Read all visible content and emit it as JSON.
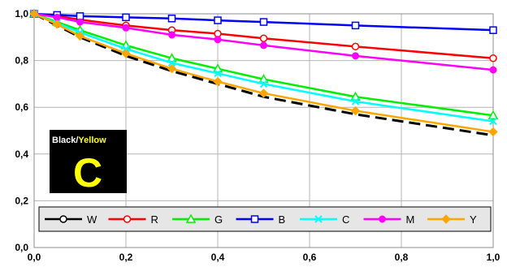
{
  "chart_data": {
    "type": "line",
    "title": "",
    "xlabel": "",
    "ylabel": "",
    "xlim": [
      0,
      1
    ],
    "ylim": [
      0,
      1
    ],
    "x_ticks": [
      "0,0",
      "0,2",
      "0,4",
      "0,6",
      "0,8",
      "1,0"
    ],
    "y_ticks": [
      "0,0",
      "0,2",
      "0,4",
      "0,6",
      "0,8",
      "1,0"
    ],
    "grid": true,
    "legend_position": "bottom",
    "series": [
      {
        "name": "W",
        "color": "#000000",
        "dash": true,
        "marker": "circle-open",
        "x": [
          0,
          0.05,
          0.1,
          0.2,
          0.3,
          0.4,
          0.5,
          0.7,
          1.0
        ],
        "y": [
          1.0,
          0.95,
          0.9,
          0.82,
          0.755,
          0.7,
          0.645,
          0.57,
          0.48
        ]
      },
      {
        "name": "R",
        "color": "#ff0000",
        "dash": false,
        "marker": "circle-open",
        "x": [
          0,
          0.05,
          0.1,
          0.2,
          0.3,
          0.4,
          0.5,
          0.7,
          1.0
        ],
        "y": [
          1.0,
          0.99,
          0.975,
          0.95,
          0.93,
          0.915,
          0.895,
          0.86,
          0.81
        ]
      },
      {
        "name": "G",
        "color": "#00ee00",
        "dash": false,
        "marker": "triangle-open",
        "x": [
          0,
          0.05,
          0.1,
          0.2,
          0.3,
          0.4,
          0.5,
          0.7,
          1.0
        ],
        "y": [
          1.0,
          0.965,
          0.93,
          0.865,
          0.81,
          0.765,
          0.72,
          0.645,
          0.565
        ]
      },
      {
        "name": "B",
        "color": "#0000ff",
        "dash": false,
        "marker": "square-open",
        "x": [
          0,
          0.05,
          0.1,
          0.2,
          0.3,
          0.4,
          0.5,
          0.7,
          1.0
        ],
        "y": [
          1.0,
          0.995,
          0.99,
          0.985,
          0.98,
          0.972,
          0.965,
          0.95,
          0.93
        ]
      },
      {
        "name": "C",
        "color": "#00ffff",
        "dash": false,
        "marker": "x",
        "x": [
          0,
          0.05,
          0.1,
          0.2,
          0.3,
          0.4,
          0.5,
          0.7,
          1.0
        ],
        "y": [
          1.0,
          0.96,
          0.92,
          0.85,
          0.79,
          0.745,
          0.7,
          0.625,
          0.54
        ]
      },
      {
        "name": "M",
        "color": "#ff00ff",
        "dash": false,
        "marker": "circle-filled",
        "x": [
          0,
          0.05,
          0.1,
          0.2,
          0.3,
          0.4,
          0.5,
          0.7,
          1.0
        ],
        "y": [
          1.0,
          0.985,
          0.965,
          0.94,
          0.91,
          0.89,
          0.865,
          0.82,
          0.76
        ]
      },
      {
        "name": "Y",
        "color": "#ffa500",
        "dash": false,
        "marker": "diamond-filled",
        "x": [
          0,
          0.05,
          0.1,
          0.2,
          0.3,
          0.4,
          0.5,
          0.7,
          1.0
        ],
        "y": [
          1.0,
          0.955,
          0.905,
          0.83,
          0.765,
          0.71,
          0.66,
          0.585,
          0.495
        ]
      }
    ]
  },
  "badge": {
    "text_black": "Black/",
    "text_yellow": "Yellow",
    "letter": "C",
    "background": "#000000",
    "accent": "#ffff00"
  }
}
